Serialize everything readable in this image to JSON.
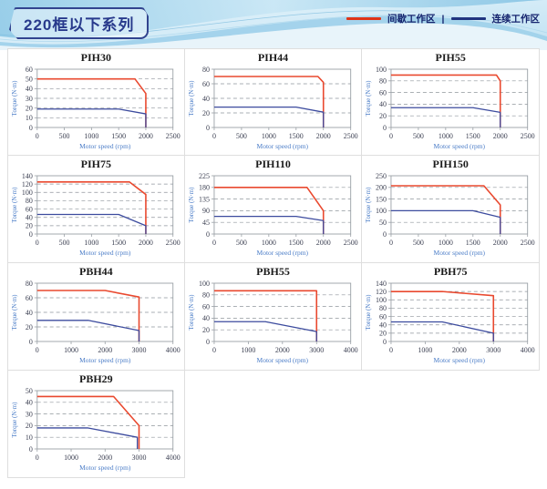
{
  "header": {
    "title": "220框以下系列",
    "legend_separator": "|",
    "legend": [
      {
        "name": "intermittent-zone",
        "label": "间歇工作区",
        "color": "#df3418"
      },
      {
        "name": "continuous-zone",
        "label": "连续工作区",
        "color": "#20347f"
      }
    ]
  },
  "axis_labels": {
    "x": "Motor speed (rpm)",
    "y": "Torque (N·m)"
  },
  "colors": {
    "red_series": "#e9492f",
    "blue_series": "#3c4b9e",
    "grid_dash": "#8f959c",
    "frame": "#9aa0a6",
    "tick_text": "#3b3f51",
    "axis_label_text": "#4a7cc7",
    "cell_border": "#dedede",
    "title_text": "#1b1b1b"
  },
  "chart_data": [
    {
      "type": "line",
      "title": "PIH30",
      "xlabel": "Motor speed (rpm)",
      "ylabel": "Torque (N·m)",
      "xlim": [
        0,
        2500
      ],
      "x_ticks": [
        0,
        500,
        1000,
        1500,
        2000,
        2500
      ],
      "ylim": [
        0,
        60
      ],
      "y_ticks": [
        0,
        10,
        20,
        30,
        40,
        50,
        60
      ],
      "series": [
        {
          "name": "间歇工作区",
          "color_key": "red_series",
          "points": [
            [
              0,
              50
            ],
            [
              1800,
              50
            ],
            [
              2000,
              35
            ],
            [
              2000,
              0
            ]
          ]
        },
        {
          "name": "连续工作区",
          "color_key": "blue_series",
          "points": [
            [
              0,
              19
            ],
            [
              1500,
              19
            ],
            [
              2000,
              14
            ],
            [
              2000,
              0
            ]
          ]
        }
      ]
    },
    {
      "type": "line",
      "title": "PIH44",
      "xlabel": "Motor speed (rpm)",
      "ylabel": "Torque (N·m)",
      "xlim": [
        0,
        2500
      ],
      "x_ticks": [
        0,
        500,
        1000,
        1500,
        2000,
        2500
      ],
      "ylim": [
        0,
        80
      ],
      "y_ticks": [
        0,
        20,
        40,
        60,
        80
      ],
      "series": [
        {
          "name": "间歇工作区",
          "color_key": "red_series",
          "points": [
            [
              0,
              70
            ],
            [
              1900,
              70
            ],
            [
              2000,
              62
            ],
            [
              2000,
              0
            ]
          ]
        },
        {
          "name": "连续工作区",
          "color_key": "blue_series",
          "points": [
            [
              0,
              28
            ],
            [
              1500,
              28
            ],
            [
              2000,
              21
            ],
            [
              2000,
              0
            ]
          ]
        }
      ]
    },
    {
      "type": "line",
      "title": "PIH55",
      "xlabel": "Motor speed (rpm)",
      "ylabel": "Torque (N·m)",
      "xlim": [
        0,
        2500
      ],
      "x_ticks": [
        0,
        500,
        1000,
        1500,
        2000,
        2500
      ],
      "ylim": [
        0,
        100
      ],
      "y_ticks": [
        0,
        20,
        40,
        60,
        80,
        100
      ],
      "series": [
        {
          "name": "间歇工作区",
          "color_key": "red_series",
          "points": [
            [
              0,
              90
            ],
            [
              1930,
              90
            ],
            [
              2000,
              80
            ],
            [
              2000,
              0
            ]
          ]
        },
        {
          "name": "连续工作区",
          "color_key": "blue_series",
          "points": [
            [
              0,
              34
            ],
            [
              1500,
              34
            ],
            [
              2000,
              26
            ],
            [
              2000,
              0
            ]
          ]
        }
      ]
    },
    {
      "type": "line",
      "title": "PIH75",
      "xlabel": "Motor speed (rpm)",
      "ylabel": "Torque (N·m)",
      "xlim": [
        0,
        2500
      ],
      "x_ticks": [
        0,
        500,
        1000,
        1500,
        2000,
        2500
      ],
      "ylim": [
        0,
        140
      ],
      "y_ticks": [
        0,
        20,
        40,
        60,
        80,
        100,
        120,
        140
      ],
      "series": [
        {
          "name": "间歇工作区",
          "color_key": "red_series",
          "points": [
            [
              0,
              125
            ],
            [
              1700,
              125
            ],
            [
              2000,
              95
            ],
            [
              2000,
              0
            ]
          ]
        },
        {
          "name": "连续工作区",
          "color_key": "blue_series",
          "points": [
            [
              0,
              47
            ],
            [
              1500,
              47
            ],
            [
              2000,
              20
            ],
            [
              2000,
              0
            ]
          ]
        }
      ]
    },
    {
      "type": "line",
      "title": "PIH110",
      "xlabel": "Motor speed (rpm)",
      "ylabel": "Torque (N·m)",
      "xlim": [
        0,
        2500
      ],
      "x_ticks": [
        0,
        500,
        1000,
        1500,
        2000,
        2500
      ],
      "ylim": [
        0,
        225
      ],
      "y_ticks": [
        0,
        45,
        90,
        135,
        180,
        225
      ],
      "series": [
        {
          "name": "间歇工作区",
          "color_key": "red_series",
          "points": [
            [
              0,
              180
            ],
            [
              1700,
              180
            ],
            [
              2000,
              90
            ],
            [
              2000,
              0
            ]
          ]
        },
        {
          "name": "连续工作区",
          "color_key": "blue_series",
          "points": [
            [
              0,
              68
            ],
            [
              1500,
              68
            ],
            [
              2000,
              52
            ],
            [
              2000,
              0
            ]
          ]
        }
      ]
    },
    {
      "type": "line",
      "title": "PIH150",
      "xlabel": "Motor speed (rpm)",
      "ylabel": "Torque (N·m)",
      "xlim": [
        0,
        2500
      ],
      "x_ticks": [
        0,
        500,
        1000,
        1500,
        2000,
        2500
      ],
      "ylim": [
        0,
        250
      ],
      "y_ticks": [
        0,
        50,
        100,
        150,
        200,
        250
      ],
      "series": [
        {
          "name": "间歇工作区",
          "color_key": "red_series",
          "points": [
            [
              0,
              207
            ],
            [
              1700,
              207
            ],
            [
              2000,
              125
            ],
            [
              2000,
              0
            ]
          ]
        },
        {
          "name": "连续工作区",
          "color_key": "blue_series",
          "points": [
            [
              0,
              100
            ],
            [
              1500,
              100
            ],
            [
              2000,
              72
            ],
            [
              2000,
              0
            ]
          ]
        }
      ]
    },
    {
      "type": "line",
      "title": "PBH44",
      "xlabel": "Motor speed (rpm)",
      "ylabel": "Torque (N·m)",
      "xlim": [
        0,
        4000
      ],
      "x_ticks": [
        0,
        1000,
        2000,
        3000,
        4000
      ],
      "ylim": [
        0,
        80
      ],
      "y_ticks": [
        0,
        20,
        40,
        60,
        80
      ],
      "series": [
        {
          "name": "间歇工作区",
          "color_key": "red_series",
          "points": [
            [
              0,
              70
            ],
            [
              2000,
              70
            ],
            [
              3000,
              61
            ],
            [
              3000,
              0
            ]
          ]
        },
        {
          "name": "连续工作区",
          "color_key": "blue_series",
          "points": [
            [
              0,
              29
            ],
            [
              1500,
              29
            ],
            [
              3000,
              15
            ],
            [
              3000,
              0
            ]
          ]
        }
      ]
    },
    {
      "type": "line",
      "title": "PBH55",
      "xlabel": "Motor speed (rpm)",
      "ylabel": "Torque (N·m)",
      "xlim": [
        0,
        4000
      ],
      "x_ticks": [
        0,
        1000,
        2000,
        3000,
        4000
      ],
      "ylim": [
        0,
        100
      ],
      "y_ticks": [
        0,
        20,
        40,
        60,
        80,
        100
      ],
      "series": [
        {
          "name": "间歇工作区",
          "color_key": "red_series",
          "points": [
            [
              0,
              87
            ],
            [
              3000,
              87
            ],
            [
              3000,
              0
            ]
          ]
        },
        {
          "name": "连续工作区",
          "color_key": "blue_series",
          "points": [
            [
              0,
              34
            ],
            [
              1500,
              34
            ],
            [
              3000,
              17
            ],
            [
              3000,
              0
            ]
          ]
        }
      ]
    },
    {
      "type": "line",
      "title": "PBH75",
      "xlabel": "Motor speed (rpm)",
      "ylabel": "Torque (N·m)",
      "xlim": [
        0,
        4000
      ],
      "x_ticks": [
        0,
        1000,
        2000,
        3000,
        4000
      ],
      "ylim": [
        0,
        140
      ],
      "y_ticks": [
        0,
        20,
        40,
        60,
        80,
        100,
        120,
        140
      ],
      "series": [
        {
          "name": "间歇工作区",
          "color_key": "red_series",
          "points": [
            [
              0,
              120
            ],
            [
              1500,
              120
            ],
            [
              3000,
              110
            ],
            [
              3000,
              0
            ]
          ]
        },
        {
          "name": "连续工作区",
          "color_key": "blue_series",
          "points": [
            [
              0,
              47
            ],
            [
              1500,
              47
            ],
            [
              3000,
              20
            ],
            [
              3000,
              0
            ]
          ]
        }
      ]
    },
    {
      "type": "line",
      "title": "PBH29",
      "xlabel": "Motor speed (rpm)",
      "ylabel": "Torque (N·m)",
      "xlim": [
        0,
        4000
      ],
      "x_ticks": [
        0,
        1000,
        2000,
        3000,
        4000
      ],
      "ylim": [
        0,
        50
      ],
      "y_ticks": [
        0,
        10,
        20,
        30,
        40,
        50
      ],
      "series": [
        {
          "name": "间歇工作区",
          "color_key": "red_series",
          "points": [
            [
              0,
              45
            ],
            [
              2250,
              45
            ],
            [
              3000,
              20
            ],
            [
              3000,
              0
            ]
          ]
        },
        {
          "name": "连续工作区",
          "color_key": "blue_series",
          "points": [
            [
              0,
              18
            ],
            [
              1500,
              18
            ],
            [
              2950,
              10
            ],
            [
              2950,
              0
            ]
          ]
        }
      ]
    }
  ]
}
